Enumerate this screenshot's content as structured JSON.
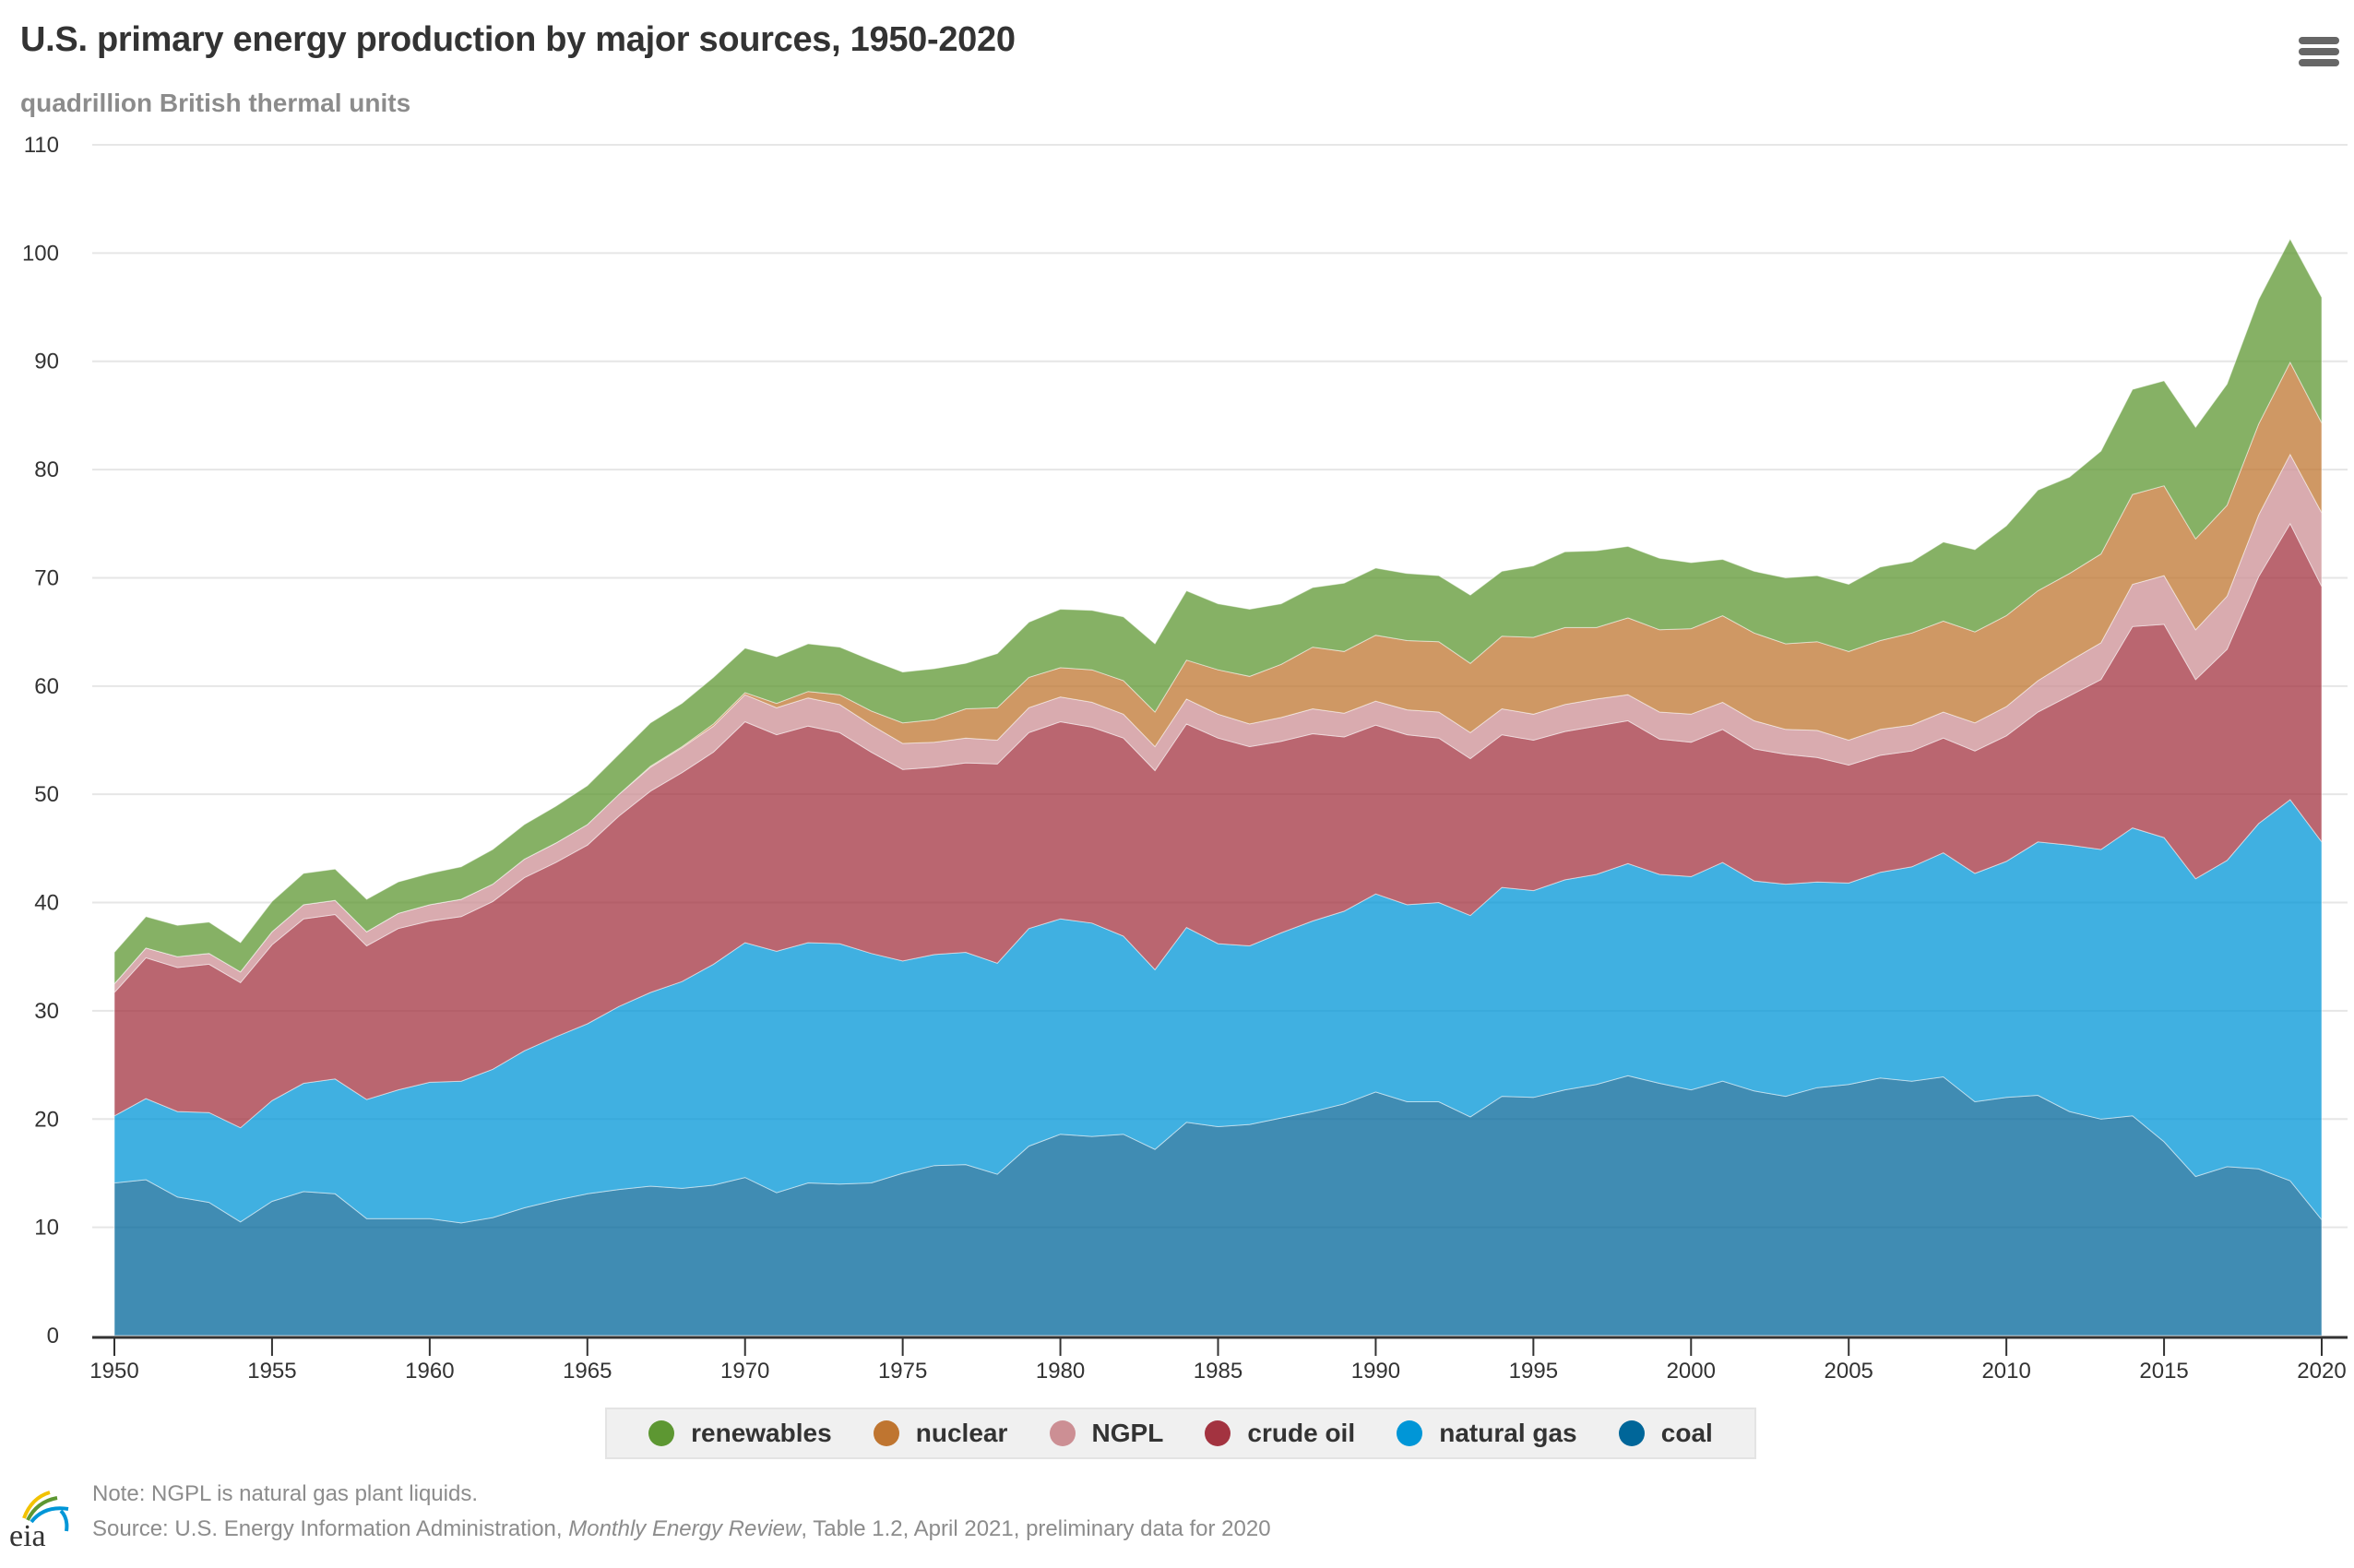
{
  "header": {
    "title": "U.S. primary energy production by major sources, 1950-2020",
    "subtitle": "quadrillion British thermal units",
    "menu_icon": "hamburger-menu-icon"
  },
  "footer": {
    "note": "Note: NGPL is natural gas plant liquids.",
    "source_prefix": "Source: U.S. Energy Information Administration, ",
    "source_italic": "Monthly Energy Review",
    "source_suffix": ", Table 1.2, April 2021, preliminary data for 2020",
    "logo_text": "eia"
  },
  "chart_data": {
    "type": "area",
    "stacked": true,
    "title": "U.S. primary energy production by major sources, 1950-2020",
    "subtitle": "quadrillion British thermal units",
    "xlabel": "",
    "ylabel": "quadrillion British thermal units",
    "xlim": [
      1950,
      2020
    ],
    "ylim": [
      0,
      110
    ],
    "yticks": [
      0,
      10,
      20,
      30,
      40,
      50,
      60,
      70,
      80,
      90,
      100,
      110
    ],
    "xticks": [
      1950,
      1955,
      1960,
      1965,
      1970,
      1975,
      1980,
      1985,
      1990,
      1995,
      2000,
      2005,
      2010,
      2015,
      2020
    ],
    "grid": true,
    "legend_position": "bottom-center",
    "x": [
      1950,
      1951,
      1952,
      1953,
      1954,
      1955,
      1956,
      1957,
      1958,
      1959,
      1960,
      1961,
      1962,
      1963,
      1964,
      1965,
      1966,
      1967,
      1968,
      1969,
      1970,
      1971,
      1972,
      1973,
      1974,
      1975,
      1976,
      1977,
      1978,
      1979,
      1980,
      1981,
      1982,
      1983,
      1984,
      1985,
      1986,
      1987,
      1988,
      1989,
      1990,
      1991,
      1992,
      1993,
      1994,
      1995,
      1996,
      1997,
      1998,
      1999,
      2000,
      2001,
      2002,
      2003,
      2004,
      2005,
      2006,
      2007,
      2008,
      2009,
      2010,
      2011,
      2012,
      2013,
      2014,
      2015,
      2016,
      2017,
      2018,
      2019,
      2020
    ],
    "series": [
      {
        "name": "coal",
        "color": "#006699",
        "values": [
          14.1,
          14.4,
          12.8,
          12.3,
          10.5,
          12.4,
          13.3,
          13.1,
          10.8,
          10.8,
          10.8,
          10.4,
          10.9,
          11.8,
          12.5,
          13.1,
          13.5,
          13.8,
          13.6,
          13.9,
          14.6,
          13.2,
          14.1,
          14.0,
          14.1,
          15.0,
          15.7,
          15.8,
          14.9,
          17.5,
          18.6,
          18.4,
          18.6,
          17.2,
          19.7,
          19.3,
          19.5,
          20.1,
          20.7,
          21.4,
          22.5,
          21.6,
          21.6,
          20.2,
          22.1,
          22.0,
          22.7,
          23.2,
          24.0,
          23.3,
          22.7,
          23.5,
          22.6,
          22.1,
          22.9,
          23.2,
          23.8,
          23.5,
          23.9,
          21.6,
          22.0,
          22.2,
          20.7,
          20.0,
          20.3,
          17.9,
          14.7,
          15.6,
          15.4,
          14.3,
          10.7
        ]
      },
      {
        "name": "natural gas",
        "color": "#0096d7",
        "values": [
          6.2,
          7.5,
          7.9,
          8.3,
          8.7,
          9.3,
          10.0,
          10.6,
          11.0,
          11.9,
          12.6,
          13.1,
          13.7,
          14.5,
          15.1,
          15.7,
          16.9,
          17.9,
          19.1,
          20.4,
          21.7,
          22.3,
          22.2,
          22.2,
          21.2,
          19.6,
          19.5,
          19.6,
          19.5,
          20.1,
          19.9,
          19.7,
          18.3,
          16.6,
          18.0,
          16.9,
          16.5,
          17.1,
          17.6,
          17.8,
          18.3,
          18.2,
          18.4,
          18.6,
          19.3,
          19.1,
          19.4,
          19.4,
          19.6,
          19.3,
          19.7,
          20.2,
          19.4,
          19.6,
          19.0,
          18.6,
          19.0,
          19.8,
          20.7,
          21.1,
          21.8,
          23.4,
          24.6,
          24.9,
          26.6,
          28.1,
          27.5,
          28.3,
          31.9,
          35.2,
          34.9
        ]
      },
      {
        "name": "crude oil",
        "color": "#a33340",
        "values": [
          11.4,
          13.0,
          13.3,
          13.7,
          13.4,
          14.4,
          15.2,
          15.2,
          14.2,
          14.9,
          14.9,
          15.2,
          15.5,
          16.0,
          16.1,
          16.5,
          17.6,
          18.6,
          19.3,
          19.6,
          20.4,
          20.0,
          20.0,
          19.5,
          18.6,
          17.7,
          17.3,
          17.5,
          18.4,
          18.1,
          18.2,
          18.1,
          18.3,
          18.4,
          18.8,
          19.0,
          18.4,
          17.7,
          17.3,
          16.1,
          15.6,
          15.7,
          15.2,
          14.5,
          14.1,
          13.9,
          13.7,
          13.7,
          13.2,
          12.5,
          12.4,
          12.3,
          12.2,
          12.0,
          11.5,
          10.9,
          10.8,
          10.7,
          10.6,
          11.3,
          11.6,
          12.0,
          13.8,
          15.7,
          18.6,
          19.7,
          18.4,
          19.5,
          22.8,
          25.5,
          23.6
        ]
      },
      {
        "name": "NGPL",
        "color": "#cc8f94",
        "values": [
          0.8,
          0.9,
          1.0,
          1.0,
          1.0,
          1.2,
          1.3,
          1.3,
          1.3,
          1.4,
          1.5,
          1.6,
          1.6,
          1.7,
          1.8,
          1.9,
          2.0,
          2.2,
          2.3,
          2.4,
          2.5,
          2.5,
          2.6,
          2.6,
          2.5,
          2.4,
          2.3,
          2.3,
          2.2,
          2.3,
          2.3,
          2.3,
          2.2,
          2.2,
          2.3,
          2.2,
          2.1,
          2.2,
          2.3,
          2.2,
          2.2,
          2.3,
          2.4,
          2.4,
          2.4,
          2.4,
          2.5,
          2.5,
          2.4,
          2.5,
          2.6,
          2.5,
          2.6,
          2.3,
          2.5,
          2.3,
          2.4,
          2.4,
          2.4,
          2.6,
          2.7,
          2.9,
          3.2,
          3.4,
          3.9,
          4.5,
          4.6,
          4.9,
          5.7,
          6.4,
          6.8
        ]
      },
      {
        "name": "nuclear",
        "color": "#bf7530",
        "values": [
          0,
          0,
          0,
          0,
          0,
          0,
          0,
          0,
          0,
          0,
          0,
          0,
          0,
          0,
          0,
          0,
          0,
          0.1,
          0.1,
          0.2,
          0.2,
          0.4,
          0.6,
          0.9,
          1.3,
          1.9,
          2.1,
          2.7,
          3.0,
          2.8,
          2.7,
          3.0,
          3.1,
          3.2,
          3.6,
          4.1,
          4.4,
          4.9,
          5.7,
          5.7,
          6.1,
          6.4,
          6.5,
          6.4,
          6.7,
          7.1,
          7.1,
          6.6,
          7.1,
          7.6,
          7.9,
          8.0,
          8.1,
          7.9,
          8.2,
          8.2,
          8.2,
          8.5,
          8.4,
          8.4,
          8.4,
          8.3,
          8.1,
          8.2,
          8.3,
          8.3,
          8.4,
          8.4,
          8.4,
          8.5,
          8.3
        ]
      },
      {
        "name": "renewables",
        "color": "#5d9732",
        "values": [
          2.9,
          2.9,
          2.9,
          2.9,
          2.7,
          2.8,
          2.9,
          2.9,
          3.0,
          2.9,
          2.9,
          3.0,
          3.2,
          3.2,
          3.4,
          3.6,
          3.7,
          4.0,
          4.0,
          4.3,
          4.1,
          4.3,
          4.4,
          4.4,
          4.7,
          4.7,
          4.7,
          4.2,
          5.0,
          5.1,
          5.4,
          5.5,
          5.9,
          6.3,
          6.4,
          6.1,
          6.2,
          5.6,
          5.5,
          6.3,
          6.2,
          6.2,
          6.1,
          6.3,
          6.0,
          6.6,
          7.0,
          7.1,
          6.6,
          6.6,
          6.1,
          5.2,
          5.7,
          6.1,
          6.1,
          6.2,
          6.8,
          6.6,
          7.3,
          7.6,
          8.3,
          9.3,
          8.9,
          9.5,
          9.7,
          9.7,
          10.3,
          11.2,
          11.5,
          11.4,
          11.6
        ]
      }
    ]
  },
  "legend": {
    "items": [
      {
        "label": "renewables",
        "color": "#5d9732"
      },
      {
        "label": "nuclear",
        "color": "#bf7530"
      },
      {
        "label": "NGPL",
        "color": "#cc8f94"
      },
      {
        "label": "crude oil",
        "color": "#a33340"
      },
      {
        "label": "natural gas",
        "color": "#0096d7"
      },
      {
        "label": "coal",
        "color": "#006699"
      }
    ]
  }
}
